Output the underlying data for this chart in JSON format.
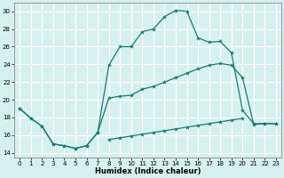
{
  "title": "",
  "xlabel": "Humidex (Indice chaleur)",
  "ylabel": "",
  "bg_color": "#d6f0f0",
  "grid_color": "#ffffff",
  "line_color": "#1a7a6e",
  "xlim": [
    -0.5,
    23.5
  ],
  "ylim": [
    13.5,
    31.0
  ],
  "xticks": [
    0,
    1,
    2,
    3,
    4,
    5,
    6,
    7,
    8,
    9,
    10,
    11,
    12,
    13,
    14,
    15,
    16,
    17,
    18,
    19,
    20,
    21,
    22,
    23
  ],
  "yticks": [
    14,
    16,
    18,
    20,
    22,
    24,
    26,
    28,
    30
  ],
  "line1_x": [
    0,
    1,
    2,
    3,
    4,
    5,
    6,
    7,
    8,
    9,
    10,
    11,
    12,
    13,
    14,
    15,
    16,
    17,
    18,
    19,
    20,
    21,
    22,
    23
  ],
  "line1_y": [
    19.0,
    17.9,
    17.0,
    15.0,
    14.8,
    14.5,
    14.8,
    16.3,
    23.9,
    26.0,
    26.0,
    27.7,
    28.0,
    29.4,
    30.1,
    30.0,
    27.0,
    26.5,
    26.6,
    25.3,
    18.8,
    17.3,
    17.3,
    17.3
  ],
  "line2_x": [
    0,
    1,
    2,
    3,
    4,
    5,
    6,
    7,
    8,
    9,
    10,
    11,
    12,
    13,
    14,
    15,
    16,
    17,
    18,
    19,
    20,
    21,
    22,
    23
  ],
  "line2_y": [
    19.0,
    17.9,
    17.0,
    15.0,
    14.8,
    14.5,
    14.8,
    16.3,
    20.2,
    20.4,
    20.5,
    21.2,
    21.5,
    22.0,
    22.5,
    23.0,
    23.5,
    23.9,
    24.1,
    23.9,
    22.5,
    17.2,
    17.3,
    17.3
  ],
  "line3_x": [
    0,
    1,
    2,
    3,
    4,
    5,
    6,
    7,
    8,
    9,
    10,
    11,
    12,
    13,
    14,
    15,
    16,
    17,
    18,
    19,
    20,
    21,
    22,
    23
  ],
  "line3_y": [
    null,
    null,
    null,
    null,
    null,
    null,
    null,
    null,
    15.5,
    15.7,
    15.9,
    16.1,
    16.3,
    16.5,
    16.7,
    16.9,
    17.1,
    17.3,
    17.5,
    17.7,
    17.9,
    null,
    null,
    null
  ]
}
